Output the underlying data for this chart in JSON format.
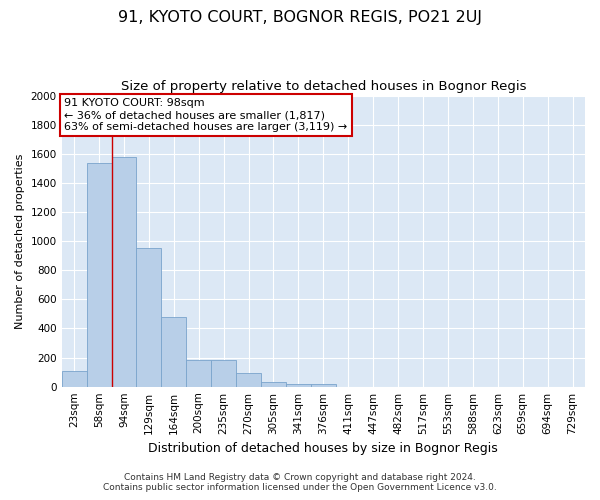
{
  "title": "91, KYOTO COURT, BOGNOR REGIS, PO21 2UJ",
  "subtitle": "Size of property relative to detached houses in Bognor Regis",
  "xlabel": "Distribution of detached houses by size in Bognor Regis",
  "ylabel": "Number of detached properties",
  "categories": [
    "23sqm",
    "58sqm",
    "94sqm",
    "129sqm",
    "164sqm",
    "200sqm",
    "235sqm",
    "270sqm",
    "305sqm",
    "341sqm",
    "376sqm",
    "411sqm",
    "447sqm",
    "482sqm",
    "517sqm",
    "553sqm",
    "588sqm",
    "623sqm",
    "659sqm",
    "694sqm",
    "729sqm"
  ],
  "values": [
    110,
    1540,
    1580,
    950,
    480,
    185,
    185,
    95,
    35,
    20,
    20,
    0,
    0,
    0,
    0,
    0,
    0,
    0,
    0,
    0,
    0
  ],
  "bar_color": "#b8cfe8",
  "bar_edge_color": "#7aa4cc",
  "vline_color": "#cc0000",
  "annotation_text": "91 KYOTO COURT: 98sqm\n← 36% of detached houses are smaller (1,817)\n63% of semi-detached houses are larger (3,119) →",
  "annotation_box_color": "#ffffff",
  "annotation_box_edge": "#cc0000",
  "ylim": [
    0,
    2000
  ],
  "yticks": [
    0,
    200,
    400,
    600,
    800,
    1000,
    1200,
    1400,
    1600,
    1800,
    2000
  ],
  "background_color": "#dce8f5",
  "footer_line1": "Contains HM Land Registry data © Crown copyright and database right 2024.",
  "footer_line2": "Contains public sector information licensed under the Open Government Licence v3.0.",
  "title_fontsize": 11.5,
  "subtitle_fontsize": 9.5,
  "xlabel_fontsize": 9,
  "ylabel_fontsize": 8,
  "tick_fontsize": 7.5,
  "annotation_fontsize": 8,
  "footer_fontsize": 6.5
}
